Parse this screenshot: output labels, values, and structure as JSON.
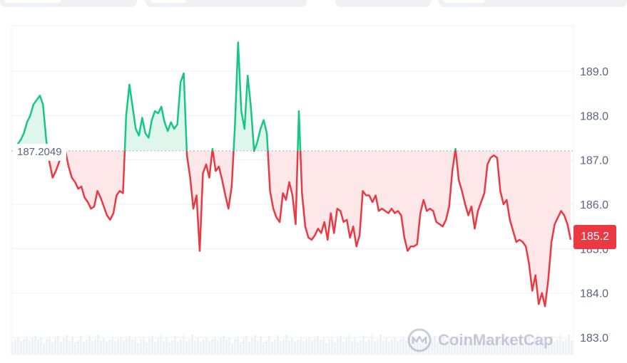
{
  "ui": {
    "tabs": [
      {
        "label": ""
      },
      {
        "label": ""
      },
      {
        "label": ""
      },
      {
        "label": ""
      }
    ],
    "watermark_text": "CoinMarketCap",
    "watermark_icon": "coinmarketcap-logo-icon"
  },
  "colors": {
    "up": "#16c784",
    "down": "#ea3943",
    "up_fill": "#dff6ec",
    "down_fill": "#fde7e8",
    "grid": "#eef0f3",
    "axis_text": "#58667e"
  },
  "chart_data": {
    "type": "line",
    "title": "",
    "xlabel": "",
    "ylabel": "",
    "ylim": [
      182.8,
      190.0
    ],
    "y_ticks": [
      "183.0",
      "184.0",
      "185.0",
      "186.0",
      "187.0",
      "188.0",
      "189.0"
    ],
    "reference_value": 187.2049,
    "reference_label": "187.2049",
    "current_price": 185.2,
    "current_price_label": "185.2",
    "grid": true,
    "baseline_colored": true,
    "series": [
      {
        "values": [
          187.25,
          187.35,
          187.45,
          187.6,
          187.85,
          188.0,
          188.25,
          188.35,
          188.45,
          188.25,
          187.45,
          186.95,
          186.6,
          186.75,
          186.95,
          187.15,
          187.2,
          186.85,
          186.6,
          186.5,
          186.35,
          186.4,
          186.15,
          186.05,
          185.9,
          185.95,
          186.3,
          186.15,
          185.95,
          185.75,
          185.65,
          185.8,
          186.2,
          186.3,
          186.25,
          188.0,
          188.7,
          188.2,
          187.7,
          187.55,
          187.95,
          187.6,
          187.5,
          187.9,
          188.1,
          188.05,
          188.2,
          187.85,
          187.65,
          187.85,
          187.7,
          187.8,
          188.75,
          188.95,
          187.1,
          186.6,
          185.9,
          186.2,
          184.95,
          186.7,
          186.9,
          186.6,
          187.25,
          186.75,
          186.85,
          186.55,
          186.2,
          185.9,
          186.4,
          187.75,
          189.65,
          188.1,
          187.7,
          188.9,
          188.2,
          187.2,
          187.4,
          187.7,
          187.9,
          187.6,
          186.3,
          185.9,
          185.7,
          185.6,
          186.25,
          186.1,
          186.5,
          186.2,
          185.55,
          188.1,
          186.25,
          185.5,
          185.25,
          185.2,
          185.3,
          185.45,
          185.35,
          185.6,
          185.2,
          185.8,
          185.35,
          185.9,
          185.85,
          185.6,
          185.65,
          185.25,
          185.5,
          185.05,
          185.3,
          186.3,
          186.2,
          186.2,
          186.05,
          186.2,
          185.85,
          185.9,
          185.85,
          185.8,
          185.9,
          185.8,
          185.85,
          185.75,
          185.25,
          184.95,
          185.05,
          185.05,
          185.1,
          185.8,
          186.1,
          185.85,
          185.9,
          185.85,
          185.6,
          185.55,
          185.5,
          185.65,
          185.95,
          186.75,
          187.25,
          186.55,
          186.3,
          186.0,
          185.75,
          185.95,
          185.45,
          185.85,
          186.05,
          186.25,
          186.9,
          187.05,
          187.1,
          187.05,
          186.3,
          186.0,
          186.1,
          185.65,
          185.4,
          185.15,
          185.2,
          185.15,
          185.05,
          184.65,
          184.05,
          184.4,
          183.75,
          184.0,
          183.7,
          184.3,
          185.15,
          185.55,
          185.7,
          185.85,
          185.75,
          185.55,
          185.2
        ]
      }
    ]
  }
}
